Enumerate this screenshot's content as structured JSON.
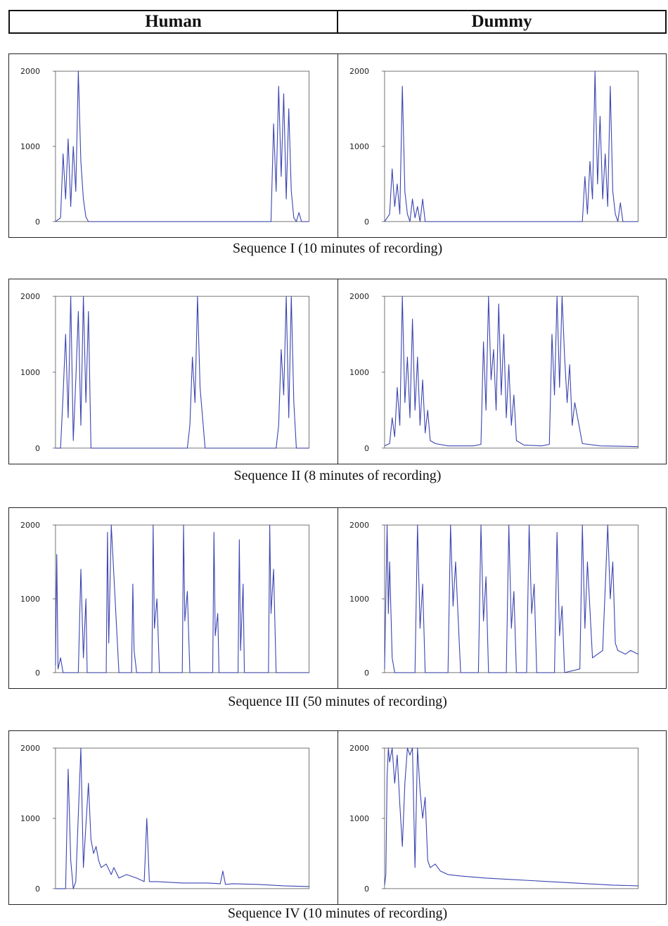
{
  "header": {
    "left": "Human",
    "right": "Dummy"
  },
  "colors": {
    "line": "#3b44b0",
    "axis": "#555555"
  },
  "chart_data": [
    {
      "type": "line",
      "caption": "Sequence I (10 minutes of recording)",
      "panels": [
        {
          "column": "Human",
          "ylim": [
            0,
            2000
          ],
          "yticks": [
            0,
            1000,
            2000
          ],
          "x": [
            0,
            0.02,
            0.03,
            0.04,
            0.05,
            0.06,
            0.07,
            0.08,
            0.09,
            0.1,
            0.11,
            0.12,
            0.13,
            0.14,
            0.15,
            0.5,
            0.85,
            0.86,
            0.87,
            0.88,
            0.89,
            0.9,
            0.91,
            0.92,
            0.93,
            0.94,
            0.95,
            0.96,
            0.97,
            0.98,
            1.0
          ],
          "y": [
            0,
            50,
            900,
            300,
            1100,
            200,
            1000,
            400,
            2000,
            800,
            300,
            60,
            0,
            0,
            0,
            0,
            0,
            1300,
            400,
            1800,
            600,
            1700,
            300,
            1500,
            400,
            50,
            0,
            120,
            0,
            0,
            0
          ]
        },
        {
          "column": "Dummy",
          "ylim": [
            0,
            2000
          ],
          "yticks": [
            0,
            1000,
            2000
          ],
          "x": [
            0,
            0.02,
            0.03,
            0.04,
            0.05,
            0.06,
            0.07,
            0.08,
            0.09,
            0.1,
            0.11,
            0.12,
            0.13,
            0.14,
            0.15,
            0.16,
            0.17,
            0.5,
            0.78,
            0.79,
            0.8,
            0.81,
            0.82,
            0.83,
            0.84,
            0.85,
            0.86,
            0.87,
            0.88,
            0.89,
            0.9,
            0.91,
            0.92,
            0.93,
            0.94,
            1.0
          ],
          "y": [
            0,
            100,
            700,
            200,
            500,
            100,
            1800,
            400,
            100,
            0,
            300,
            50,
            200,
            0,
            300,
            0,
            0,
            0,
            0,
            600,
            100,
            800,
            300,
            2000,
            500,
            1400,
            300,
            900,
            200,
            1800,
            400,
            100,
            0,
            250,
            0,
            0
          ]
        }
      ]
    },
    {
      "type": "line",
      "caption": "Sequence II (8 minutes of recording)",
      "panels": [
        {
          "column": "Human",
          "ylim": [
            0,
            2000
          ],
          "yticks": [
            0,
            1000,
            2000
          ],
          "x": [
            0,
            0.02,
            0.03,
            0.04,
            0.05,
            0.06,
            0.07,
            0.08,
            0.09,
            0.1,
            0.11,
            0.12,
            0.13,
            0.14,
            0.15,
            0.16,
            0.45,
            0.52,
            0.53,
            0.54,
            0.55,
            0.56,
            0.57,
            0.58,
            0.59,
            0.6,
            0.86,
            0.87,
            0.88,
            0.89,
            0.9,
            0.91,
            0.92,
            0.93,
            0.94,
            0.95,
            0.96,
            1.0
          ],
          "y": [
            0,
            0,
            700,
            1500,
            400,
            2000,
            100,
            900,
            1800,
            300,
            2000,
            600,
            1800,
            0,
            0,
            0,
            0,
            0,
            300,
            1200,
            600,
            2000,
            800,
            400,
            0,
            0,
            0,
            0,
            300,
            1300,
            700,
            2000,
            400,
            2000,
            600,
            0,
            0,
            0
          ]
        },
        {
          "column": "Dummy",
          "ylim": [
            0,
            2000
          ],
          "yticks": [
            0,
            1000,
            2000
          ],
          "x": [
            0,
            0.02,
            0.03,
            0.04,
            0.05,
            0.06,
            0.07,
            0.08,
            0.09,
            0.1,
            0.11,
            0.12,
            0.13,
            0.14,
            0.15,
            0.16,
            0.17,
            0.18,
            0.2,
            0.25,
            0.35,
            0.38,
            0.39,
            0.4,
            0.41,
            0.42,
            0.43,
            0.44,
            0.45,
            0.46,
            0.47,
            0.48,
            0.49,
            0.5,
            0.51,
            0.52,
            0.55,
            0.62,
            0.65,
            0.66,
            0.67,
            0.68,
            0.69,
            0.7,
            0.71,
            0.72,
            0.73,
            0.74,
            0.75,
            0.78,
            0.85,
            1.0
          ],
          "y": [
            30,
            60,
            400,
            150,
            800,
            300,
            2000,
            600,
            1200,
            400,
            1700,
            500,
            1200,
            300,
            900,
            200,
            500,
            100,
            60,
            30,
            30,
            50,
            1400,
            500,
            2000,
            900,
            1300,
            500,
            1900,
            700,
            1500,
            400,
            1100,
            300,
            700,
            100,
            40,
            30,
            50,
            1500,
            700,
            2000,
            800,
            2000,
            1200,
            600,
            1100,
            300,
            600,
            60,
            30,
            20
          ]
        }
      ]
    },
    {
      "type": "line",
      "caption": "Sequence III (50 minutes of recording)",
      "panels": [
        {
          "column": "Human",
          "ylim": [
            0,
            2000
          ],
          "yticks": [
            0,
            1000,
            2000
          ],
          "x": [
            0,
            0.005,
            0.01,
            0.02,
            0.03,
            0.09,
            0.1,
            0.11,
            0.12,
            0.125,
            0.2,
            0.205,
            0.21,
            0.22,
            0.25,
            0.3,
            0.305,
            0.31,
            0.32,
            0.38,
            0.385,
            0.39,
            0.4,
            0.41,
            0.5,
            0.505,
            0.51,
            0.52,
            0.53,
            0.62,
            0.625,
            0.63,
            0.64,
            0.645,
            0.72,
            0.725,
            0.73,
            0.74,
            0.745,
            0.84,
            0.845,
            0.85,
            0.86,
            0.87,
            1.0
          ],
          "y": [
            100,
            1600,
            50,
            200,
            0,
            0,
            1400,
            200,
            1000,
            0,
            0,
            1900,
            400,
            2000,
            0,
            0,
            1200,
            300,
            0,
            0,
            2000,
            600,
            1000,
            0,
            0,
            2000,
            700,
            1100,
            0,
            0,
            1900,
            500,
            800,
            0,
            0,
            1800,
            300,
            1200,
            0,
            0,
            2000,
            800,
            1400,
            0,
            0
          ]
        },
        {
          "column": "Dummy",
          "ylim": [
            0,
            2000
          ],
          "yticks": [
            0,
            1000,
            2000
          ],
          "x": [
            0,
            0.01,
            0.015,
            0.02,
            0.03,
            0.04,
            0.12,
            0.13,
            0.14,
            0.15,
            0.16,
            0.25,
            0.26,
            0.27,
            0.28,
            0.3,
            0.37,
            0.38,
            0.39,
            0.4,
            0.41,
            0.48,
            0.49,
            0.5,
            0.51,
            0.52,
            0.56,
            0.57,
            0.58,
            0.59,
            0.6,
            0.67,
            0.68,
            0.69,
            0.7,
            0.71,
            0.77,
            0.78,
            0.79,
            0.8,
            0.82,
            0.86,
            0.88,
            0.89,
            0.9,
            0.91,
            0.92,
            0.95,
            0.97,
            1.0
          ],
          "y": [
            50,
            2000,
            800,
            1500,
            200,
            0,
            0,
            2000,
            600,
            1200,
            0,
            0,
            2000,
            900,
            1500,
            0,
            0,
            2000,
            700,
            1300,
            0,
            0,
            2000,
            600,
            1100,
            0,
            0,
            2000,
            800,
            1200,
            0,
            0,
            1900,
            500,
            900,
            0,
            50,
            2000,
            600,
            1500,
            200,
            300,
            2000,
            1000,
            1500,
            400,
            300,
            250,
            300,
            250
          ]
        }
      ]
    },
    {
      "type": "line",
      "caption": "Sequence IV (10 minutes of recording)",
      "panels": [
        {
          "column": "Human",
          "ylim": [
            0,
            2000
          ],
          "yticks": [
            0,
            1000,
            2000
          ],
          "x": [
            0,
            0.04,
            0.05,
            0.06,
            0.07,
            0.08,
            0.1,
            0.11,
            0.12,
            0.13,
            0.14,
            0.15,
            0.16,
            0.17,
            0.18,
            0.2,
            0.22,
            0.23,
            0.25,
            0.28,
            0.32,
            0.35,
            0.36,
            0.37,
            0.4,
            0.5,
            0.6,
            0.65,
            0.66,
            0.67,
            0.7,
            0.8,
            0.9,
            1.0
          ],
          "y": [
            0,
            0,
            1700,
            400,
            0,
            100,
            2000,
            300,
            900,
            1500,
            700,
            500,
            600,
            400,
            300,
            350,
            200,
            300,
            150,
            200,
            150,
            100,
            1000,
            100,
            100,
            80,
            80,
            70,
            250,
            60,
            70,
            60,
            40,
            30
          ]
        },
        {
          "column": "Dummy",
          "ylim": [
            0,
            2000
          ],
          "yticks": [
            0,
            1000,
            2000
          ],
          "x": [
            0,
            0.005,
            0.01,
            0.015,
            0.02,
            0.03,
            0.04,
            0.05,
            0.06,
            0.07,
            0.08,
            0.09,
            0.1,
            0.11,
            0.12,
            0.13,
            0.14,
            0.15,
            0.16,
            0.17,
            0.18,
            0.2,
            0.22,
            0.25,
            0.3,
            0.4,
            0.5,
            0.6,
            0.7,
            0.8,
            0.9,
            1.0
          ],
          "y": [
            50,
            200,
            1600,
            2000,
            1800,
            2000,
            1500,
            1900,
            1200,
            600,
            1500,
            2000,
            1900,
            2000,
            300,
            2000,
            1400,
            1000,
            1300,
            400,
            300,
            350,
            250,
            200,
            180,
            150,
            130,
            110,
            90,
            70,
            50,
            40
          ]
        }
      ]
    }
  ]
}
